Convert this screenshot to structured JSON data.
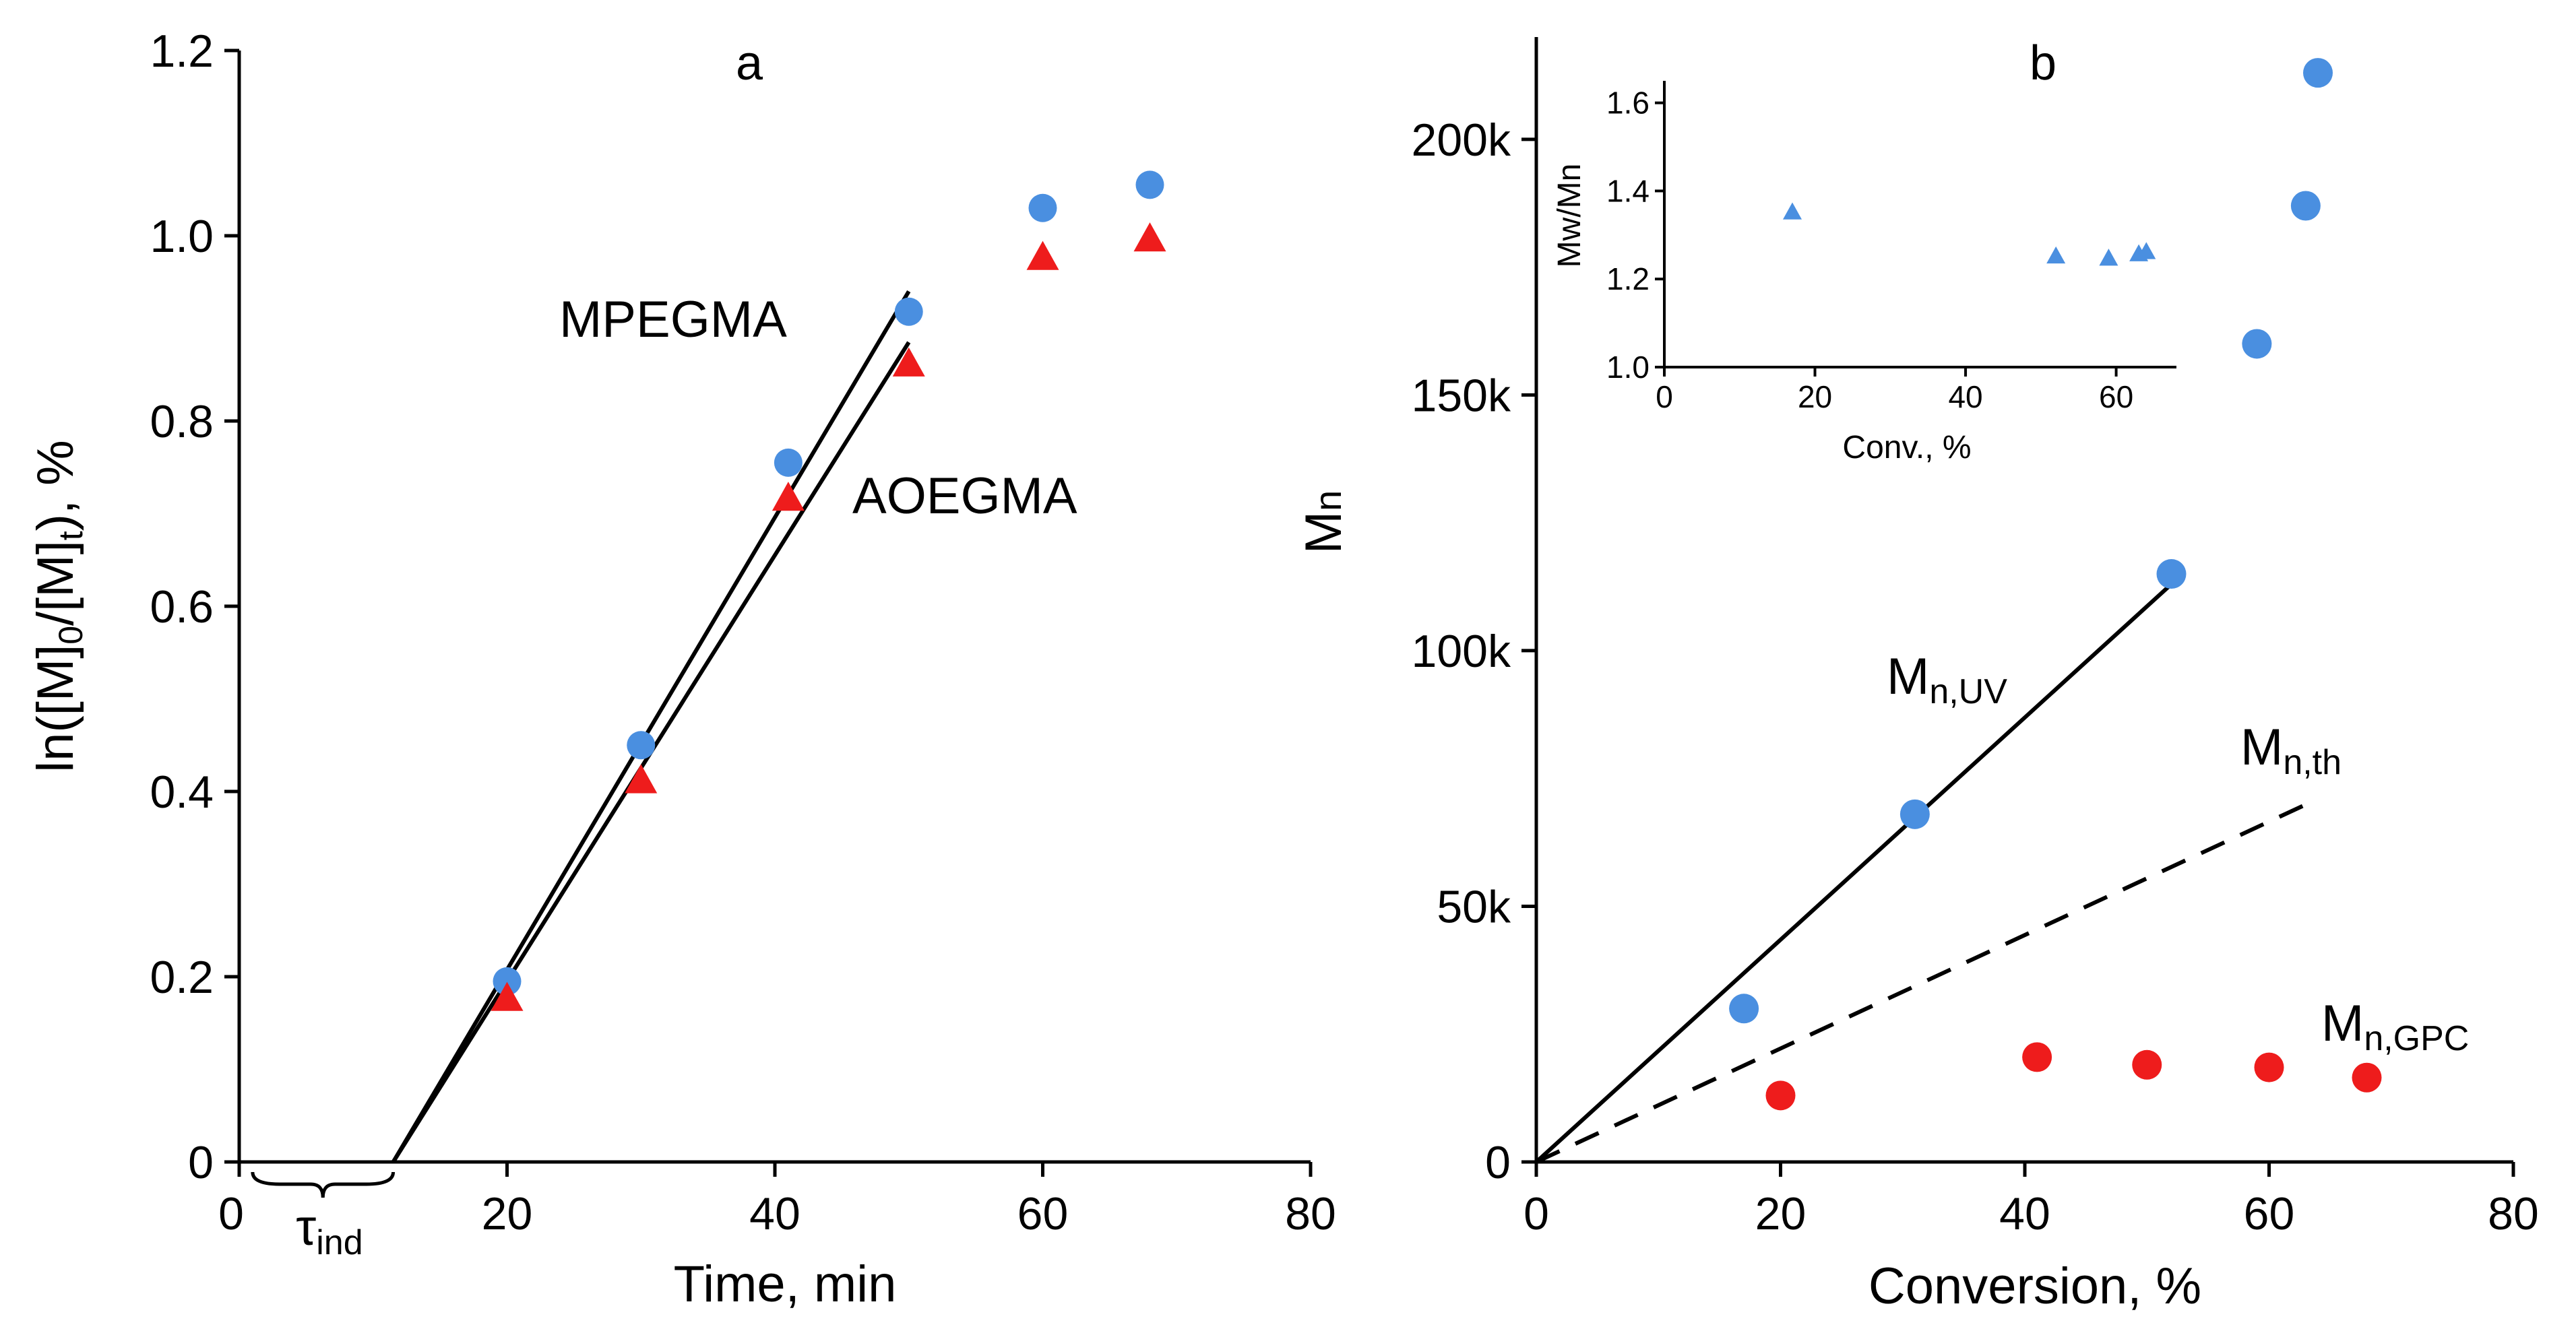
{
  "colors": {
    "blue": "#4a8fe0",
    "red": "#ee1c1c",
    "axis": "#000000"
  },
  "chart_data": [
    {
      "id": "panel-a",
      "type": "scatter",
      "panel_label": "a",
      "title": "",
      "xlabel": "Time, min",
      "ylabel": {
        "pre": "ln([M]",
        "s1": "0",
        "mid": "/[M]",
        "s2": "t",
        "post": "), %"
      },
      "xlim": [
        0,
        80
      ],
      "ylim": [
        0,
        1.2
      ],
      "xticks": [
        0,
        20,
        40,
        60,
        80
      ],
      "yticks": [
        {
          "v": 0,
          "label": "0"
        },
        {
          "v": 0.2,
          "label": "0.2"
        },
        {
          "v": 0.4,
          "label": "0.4"
        },
        {
          "v": 0.6,
          "label": "0.6"
        },
        {
          "v": 0.8,
          "label": "0.8"
        },
        {
          "v": 1.0,
          "label": "1.0"
        },
        {
          "v": 1.2,
          "label": "1.2"
        }
      ],
      "series": [
        {
          "name": "MPEGMA",
          "marker": "circle",
          "color": "#4a8fe0",
          "x": [
            20,
            30,
            41,
            50,
            60,
            68
          ],
          "y": [
            0.195,
            0.45,
            0.755,
            0.918,
            1.03,
            1.055
          ]
        },
        {
          "name": "AOEGMA",
          "marker": "triangle",
          "color": "#ee1c1c",
          "x": [
            20,
            30,
            41,
            50,
            60,
            68
          ],
          "y": [
            0.175,
            0.41,
            0.715,
            0.86,
            0.975,
            0.995
          ]
        }
      ],
      "fits": [
        {
          "series": "MPEGMA",
          "x": [
            11.5,
            50
          ],
          "y": [
            0,
            0.94
          ]
        },
        {
          "series": "AOEGMA",
          "x": [
            11.5,
            50
          ],
          "y": [
            0,
            0.885
          ]
        }
      ],
      "annotations": [
        {
          "text": "MPEGMA",
          "series": "MPEGMA"
        },
        {
          "text": "AOEGMA",
          "series": "AOEGMA"
        }
      ],
      "induction": {
        "symbol": "τ",
        "sub": "ind",
        "x_range": [
          1,
          11.5
        ]
      }
    },
    {
      "id": "panel-b",
      "type": "scatter",
      "panel_label": "b",
      "title": "",
      "xlabel": "Conversion, %",
      "ylabel": {
        "main": "M",
        "sub": "n"
      },
      "xlim": [
        0,
        80
      ],
      "ylim": [
        0,
        220000
      ],
      "xticks": [
        0,
        20,
        40,
        60,
        80
      ],
      "yticks": [
        {
          "v": 0,
          "label": "0"
        },
        {
          "v": 50000,
          "label": "50k"
        },
        {
          "v": 100000,
          "label": "100k"
        },
        {
          "v": 150000,
          "label": "150k"
        },
        {
          "v": 200000,
          "label": "200k"
        }
      ],
      "series": [
        {
          "name": "Mn,UV",
          "marker": "circle",
          "color": "#4a8fe0",
          "x": [
            17,
            31,
            52,
            59,
            63,
            64
          ],
          "y": [
            30000,
            68000,
            115000,
            160000,
            187000,
            213000
          ]
        },
        {
          "name": "Mn,GPC",
          "marker": "circle",
          "color": "#ee1c1c",
          "x": [
            20,
            41,
            50,
            60,
            68
          ],
          "y": [
            13000,
            20500,
            19000,
            18500,
            16500
          ]
        }
      ],
      "lines": [
        {
          "name": "Mn,UV",
          "style": "solid",
          "x": [
            0,
            52
          ],
          "y": [
            0,
            113000
          ]
        },
        {
          "name": "Mn,th",
          "style": "dashed",
          "x": [
            0,
            64
          ],
          "y": [
            0,
            71000
          ]
        }
      ],
      "annotations": [
        {
          "main": "M",
          "sub": "n,UV"
        },
        {
          "main": "M",
          "sub": "n,th"
        },
        {
          "main": "M",
          "sub": "n,GPC"
        }
      ],
      "inset": {
        "type": "scatter",
        "xlabel": "Conv., %",
        "ylabel": "Mw/Mn",
        "xlim": [
          0,
          68
        ],
        "ylim": [
          1.0,
          1.65
        ],
        "xticks": [
          0,
          20,
          40,
          60
        ],
        "yticks": [
          {
            "v": 1.0,
            "label": "1.0"
          },
          {
            "v": 1.2,
            "label": "1.2"
          },
          {
            "v": 1.4,
            "label": "1.4"
          },
          {
            "v": 1.6,
            "label": "1.6"
          }
        ],
        "series": [
          {
            "name": "Mw/Mn",
            "marker": "triangle",
            "color": "#4a8fe0",
            "x": [
              17,
              52,
              59,
              63,
              64
            ],
            "y": [
              1.35,
              1.25,
              1.245,
              1.255,
              1.26
            ]
          }
        ]
      }
    }
  ]
}
